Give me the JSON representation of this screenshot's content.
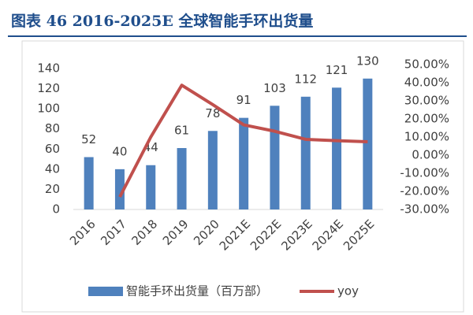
{
  "chart_data": {
    "type": "bar-line",
    "title": "图表 46   2016-2025E 全球智能手环出货量",
    "categories": [
      "2016",
      "2017",
      "2018",
      "2019",
      "2020",
      "2021E",
      "2022E",
      "2023E",
      "2024E",
      "2025E"
    ],
    "series": [
      {
        "name": "智能手环出货量（百万部）",
        "type": "bar",
        "color": "#4f81bd",
        "values": [
          52,
          40,
          44,
          61,
          78,
          91,
          103,
          112,
          121,
          130
        ]
      },
      {
        "name": "yoy",
        "type": "line",
        "axis": "y2",
        "color": "#c0504d",
        "values": [
          null,
          -23.1,
          10.0,
          38.6,
          27.9,
          16.7,
          13.2,
          8.7,
          8.0,
          7.4
        ]
      }
    ],
    "ylim": [
      0,
      140
    ],
    "yticks": [
      0,
      20,
      40,
      60,
      80,
      100,
      120,
      140
    ],
    "y2lim": [
      -30,
      50
    ],
    "y2ticks": [
      {
        "value": -30,
        "label": "-30.00%"
      },
      {
        "value": -20,
        "label": "-20.00%"
      },
      {
        "value": -10,
        "label": "-10.00%"
      },
      {
        "value": 0,
        "label": "0.00%"
      },
      {
        "value": 10,
        "label": "10.00%"
      },
      {
        "value": 20,
        "label": "20.00%"
      },
      {
        "value": 30,
        "label": "30.00%"
      },
      {
        "value": 40,
        "label": "40.00%"
      },
      {
        "value": 50,
        "label": "50.00%"
      }
    ],
    "legend": "bottom"
  }
}
